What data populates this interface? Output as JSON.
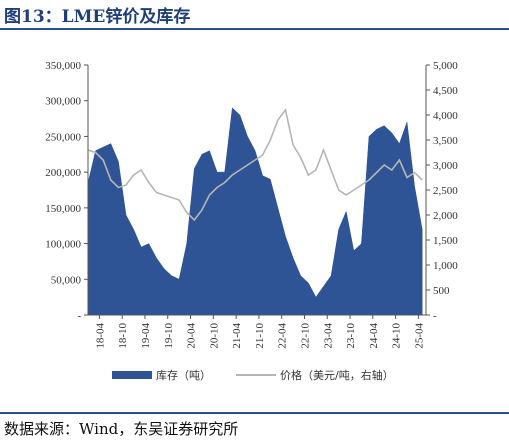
{
  "header": {
    "title": "图13：LME锌价及库存"
  },
  "footer": {
    "source": "数据来源：Wind，东吴证券研究所"
  },
  "chart_data": {
    "type": "area",
    "title": "",
    "x_tick_labels": [
      "18-04",
      "18-10",
      "19-04",
      "19-10",
      "20-04",
      "20-10",
      "21-04",
      "21-10",
      "22-04",
      "22-10",
      "23-04",
      "23-10",
      "24-04",
      "24-10",
      "25-04"
    ],
    "y_left": {
      "min": 0,
      "max": 350000,
      "tick_labels": [
        "-",
        "50,000",
        "100,000",
        "150,000",
        "200,000",
        "250,000",
        "300,000",
        "350,000"
      ]
    },
    "y_right": {
      "min": 0,
      "max": 5000,
      "tick_labels": [
        "-",
        "500",
        "1,000",
        "1,500",
        "2,000",
        "2,500",
        "3,000",
        "3,500",
        "4,000",
        "4,500",
        "5,000"
      ]
    },
    "x": [
      "2018-01",
      "2018-03",
      "2018-05",
      "2018-07",
      "2018-09",
      "2018-11",
      "2019-01",
      "2019-03",
      "2019-05",
      "2019-07",
      "2019-09",
      "2019-11",
      "2020-01",
      "2020-03",
      "2020-05",
      "2020-07",
      "2020-09",
      "2020-11",
      "2021-01",
      "2021-03",
      "2021-05",
      "2021-07",
      "2021-09",
      "2021-11",
      "2022-01",
      "2022-03",
      "2022-05",
      "2022-07",
      "2022-09",
      "2022-11",
      "2023-01",
      "2023-03",
      "2023-05",
      "2023-07",
      "2023-09",
      "2023-11",
      "2024-01",
      "2024-03",
      "2024-05",
      "2024-07",
      "2024-09",
      "2024-11",
      "2025-01",
      "2025-03",
      "2025-05"
    ],
    "series": [
      {
        "name": "库存（吨）",
        "axis": "left",
        "color": "#2e5496",
        "values": [
          185000,
          230000,
          235000,
          240000,
          215000,
          140000,
          120000,
          95000,
          100000,
          80000,
          65000,
          55000,
          50000,
          100000,
          205000,
          225000,
          230000,
          200000,
          200000,
          290000,
          280000,
          250000,
          230000,
          195000,
          190000,
          150000,
          110000,
          80000,
          55000,
          45000,
          25000,
          40000,
          55000,
          120000,
          145000,
          90000,
          100000,
          250000,
          260000,
          265000,
          255000,
          240000,
          270000,
          180000,
          120000
        ]
      },
      {
        "name": "价格（美元/吨，右轴）",
        "axis": "right",
        "color": "#b5b5b5",
        "values": [
          3300,
          3250,
          3100,
          2700,
          2550,
          2600,
          2800,
          2900,
          2650,
          2450,
          2400,
          2350,
          2300,
          2050,
          1900,
          2100,
          2400,
          2550,
          2650,
          2800,
          2900,
          3000,
          3100,
          3200,
          3500,
          3900,
          4100,
          3400,
          3150,
          2800,
          2900,
          3300,
          2900,
          2500,
          2400,
          2500,
          2600,
          2700,
          2850,
          3000,
          2900,
          3100,
          2750,
          2850,
          2700
        ]
      }
    ],
    "legend": {
      "position": "bottom",
      "entries": [
        "库存（吨）",
        "价格（美元/吨，右轴）"
      ]
    },
    "grid": false
  }
}
